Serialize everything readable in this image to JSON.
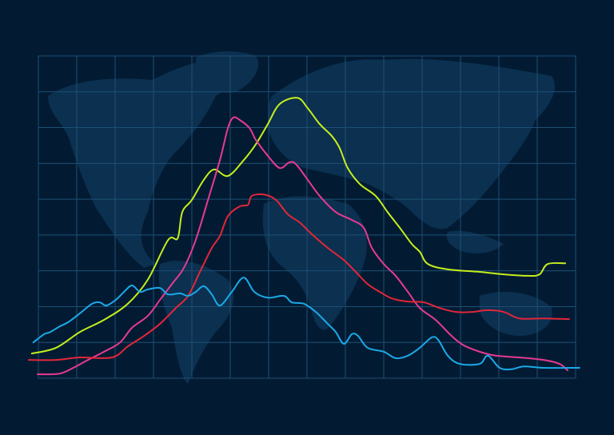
{
  "chart_data": {
    "type": "line",
    "title": "",
    "xlabel": "",
    "ylabel": "",
    "xlim": [
      0,
      14
    ],
    "ylim": [
      0,
      9
    ],
    "grid": true,
    "legend": "none",
    "background": "world-map",
    "colors": {
      "background": "#021b33",
      "map": "#0b3050",
      "grid": "#1f4f74"
    },
    "series": [
      {
        "color": "#c5ee1c",
        "points": [
          [
            -0.17,
            0.69
          ],
          [
            0.46,
            0.85
          ],
          [
            1.08,
            1.29
          ],
          [
            1.71,
            1.63
          ],
          [
            2.33,
            2.08
          ],
          [
            2.85,
            2.75
          ],
          [
            3.38,
            3.86
          ],
          [
            3.63,
            3.91
          ],
          [
            3.75,
            4.64
          ],
          [
            4.0,
            4.98
          ],
          [
            4.31,
            5.54
          ],
          [
            4.58,
            5.83
          ],
          [
            4.94,
            5.65
          ],
          [
            5.35,
            6.09
          ],
          [
            5.67,
            6.54
          ],
          [
            5.98,
            7.1
          ],
          [
            6.29,
            7.66
          ],
          [
            6.75,
            7.83
          ],
          [
            7.02,
            7.54
          ],
          [
            7.33,
            7.1
          ],
          [
            7.65,
            6.76
          ],
          [
            7.85,
            6.43
          ],
          [
            8.06,
            5.87
          ],
          [
            8.38,
            5.42
          ],
          [
            8.79,
            5.09
          ],
          [
            9.1,
            4.64
          ],
          [
            9.42,
            4.2
          ],
          [
            9.73,
            3.75
          ],
          [
            9.94,
            3.53
          ],
          [
            10.15,
            3.19
          ],
          [
            10.67,
            3.04
          ],
          [
            11.5,
            2.97
          ],
          [
            12.13,
            2.9
          ],
          [
            12.75,
            2.86
          ],
          [
            13.06,
            2.9
          ],
          [
            13.27,
            3.19
          ],
          [
            13.73,
            3.21
          ]
        ]
      },
      {
        "color": "#e83a92",
        "points": [
          [
            -0.02,
            0.11
          ],
          [
            0.56,
            0.13
          ],
          [
            0.98,
            0.33
          ],
          [
            1.29,
            0.51
          ],
          [
            1.71,
            0.74
          ],
          [
            2.13,
            1.0
          ],
          [
            2.44,
            1.41
          ],
          [
            2.85,
            1.74
          ],
          [
            3.17,
            2.19
          ],
          [
            3.48,
            2.63
          ],
          [
            3.79,
            3.08
          ],
          [
            4.1,
            3.86
          ],
          [
            4.42,
            4.98
          ],
          [
            4.73,
            6.09
          ],
          [
            4.94,
            6.99
          ],
          [
            5.08,
            7.28
          ],
          [
            5.25,
            7.21
          ],
          [
            5.5,
            6.99
          ],
          [
            5.67,
            6.65
          ],
          [
            5.98,
            6.21
          ],
          [
            6.29,
            5.87
          ],
          [
            6.54,
            6.03
          ],
          [
            6.71,
            5.98
          ],
          [
            7.02,
            5.54
          ],
          [
            7.33,
            5.09
          ],
          [
            7.75,
            4.64
          ],
          [
            8.17,
            4.42
          ],
          [
            8.48,
            4.2
          ],
          [
            8.69,
            3.64
          ],
          [
            9.0,
            3.19
          ],
          [
            9.31,
            2.86
          ],
          [
            9.63,
            2.41
          ],
          [
            9.94,
            1.96
          ],
          [
            10.35,
            1.63
          ],
          [
            10.77,
            1.18
          ],
          [
            11.08,
            0.92
          ],
          [
            11.5,
            0.74
          ],
          [
            11.92,
            0.63
          ],
          [
            12.54,
            0.58
          ],
          [
            13.17,
            0.51
          ],
          [
            13.58,
            0.4
          ],
          [
            13.79,
            0.22
          ]
        ]
      },
      {
        "color": "#e3263a",
        "points": [
          [
            -0.25,
            0.51
          ],
          [
            0.46,
            0.51
          ],
          [
            1.08,
            0.58
          ],
          [
            1.92,
            0.58
          ],
          [
            2.33,
            0.89
          ],
          [
            2.75,
            1.18
          ],
          [
            3.17,
            1.52
          ],
          [
            3.58,
            1.96
          ],
          [
            3.9,
            2.3
          ],
          [
            4.21,
            2.97
          ],
          [
            4.52,
            3.64
          ],
          [
            4.73,
            3.97
          ],
          [
            4.94,
            4.53
          ],
          [
            5.25,
            4.8
          ],
          [
            5.46,
            4.84
          ],
          [
            5.56,
            5.09
          ],
          [
            5.88,
            5.13
          ],
          [
            6.19,
            4.98
          ],
          [
            6.5,
            4.58
          ],
          [
            6.81,
            4.35
          ],
          [
            7.13,
            4.02
          ],
          [
            7.54,
            3.64
          ],
          [
            7.96,
            3.3
          ],
          [
            8.27,
            2.97
          ],
          [
            8.58,
            2.63
          ],
          [
            8.9,
            2.41
          ],
          [
            9.21,
            2.23
          ],
          [
            9.63,
            2.14
          ],
          [
            10.04,
            2.12
          ],
          [
            10.46,
            1.96
          ],
          [
            10.88,
            1.85
          ],
          [
            11.29,
            1.85
          ],
          [
            11.71,
            1.9
          ],
          [
            12.13,
            1.85
          ],
          [
            12.54,
            1.67
          ],
          [
            13.17,
            1.67
          ],
          [
            13.83,
            1.65
          ]
        ]
      },
      {
        "color": "#1ba9e8",
        "points": [
          [
            -0.13,
            1.0
          ],
          [
            0.15,
            1.23
          ],
          [
            0.31,
            1.29
          ],
          [
            0.56,
            1.45
          ],
          [
            0.77,
            1.56
          ],
          [
            1.08,
            1.81
          ],
          [
            1.4,
            2.08
          ],
          [
            1.6,
            2.12
          ],
          [
            1.77,
            2.03
          ],
          [
            2.02,
            2.19
          ],
          [
            2.23,
            2.41
          ],
          [
            2.44,
            2.59
          ],
          [
            2.65,
            2.41
          ],
          [
            2.85,
            2.48
          ],
          [
            3.17,
            2.52
          ],
          [
            3.38,
            2.34
          ],
          [
            3.69,
            2.37
          ],
          [
            3.9,
            2.3
          ],
          [
            4.1,
            2.41
          ],
          [
            4.31,
            2.57
          ],
          [
            4.52,
            2.34
          ],
          [
            4.73,
            2.03
          ],
          [
            5.04,
            2.41
          ],
          [
            5.35,
            2.81
          ],
          [
            5.63,
            2.41
          ],
          [
            5.98,
            2.25
          ],
          [
            6.4,
            2.3
          ],
          [
            6.6,
            2.12
          ],
          [
            6.92,
            2.08
          ],
          [
            7.23,
            1.85
          ],
          [
            7.54,
            1.52
          ],
          [
            7.75,
            1.29
          ],
          [
            7.96,
            0.96
          ],
          [
            8.17,
            1.23
          ],
          [
            8.33,
            1.18
          ],
          [
            8.58,
            0.85
          ],
          [
            9.0,
            0.74
          ],
          [
            9.31,
            0.56
          ],
          [
            9.63,
            0.63
          ],
          [
            9.94,
            0.85
          ],
          [
            10.25,
            1.14
          ],
          [
            10.42,
            1.07
          ],
          [
            10.67,
            0.63
          ],
          [
            10.98,
            0.4
          ],
          [
            11.5,
            0.4
          ],
          [
            11.71,
            0.63
          ],
          [
            12.02,
            0.29
          ],
          [
            12.33,
            0.25
          ],
          [
            12.65,
            0.33
          ],
          [
            13.17,
            0.29
          ],
          [
            14.1,
            0.29
          ]
        ]
      }
    ]
  }
}
